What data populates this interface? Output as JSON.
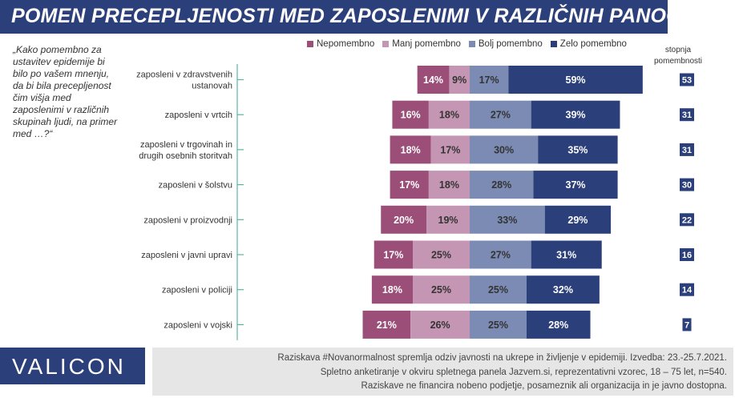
{
  "title": "POMEN PRECEPLJENOSTI MED ZAPOSLENIMI V RAZLIČNIH PANOGAH",
  "question": "„Kako pomembno za ustavitev epidemije bi bilo po vašem mnenju, da bi bila precepljenost čim višja med zaposlenimi v različnih skupinah ljudi, na primer med …?“",
  "index_header": [
    "stopnja",
    "pomembnosti"
  ],
  "colors": {
    "nepomembno": "#9b4f78",
    "manj": "#c596b3",
    "bolj": "#7c8bb4",
    "zelo": "#2b3f7a",
    "bracket": "#5ab3a2"
  },
  "chart_data": {
    "type": "bar",
    "stacked": "diverging",
    "legend": [
      "Nepomembno",
      "Manj pomembno",
      "Bolj pomembno",
      "Zelo pomembno"
    ],
    "legend_position": "top",
    "categories": [
      [
        "zaposleni v zdravstvenih",
        "ustanovah"
      ],
      [
        "zaposleni v vrtcih"
      ],
      [
        "zaposleni v trgovinah in",
        "drugih osebnih storitvah"
      ],
      [
        "zaposleni v šolstvu"
      ],
      [
        "zaposleni v proizvodnji"
      ],
      [
        "zaposleni v javni upravi"
      ],
      [
        "zaposleni v policiji"
      ],
      [
        "zaposleni v vojski"
      ]
    ],
    "series": [
      {
        "name": "Nepomembno",
        "values": [
          14,
          16,
          18,
          17,
          20,
          17,
          18,
          21
        ]
      },
      {
        "name": "Manj pomembno",
        "values": [
          9,
          18,
          17,
          18,
          19,
          25,
          25,
          26
        ]
      },
      {
        "name": "Bolj pomembno",
        "values": [
          17,
          27,
          30,
          28,
          33,
          27,
          25,
          25
        ]
      },
      {
        "name": "Zelo pomembno",
        "values": [
          59,
          39,
          35,
          37,
          29,
          31,
          32,
          28
        ]
      }
    ],
    "value_suffix": "%",
    "index": [
      53,
      31,
      31,
      30,
      22,
      16,
      14,
      7
    ]
  },
  "logo": "VALICON",
  "footer": [
    "Raziskava #Novanormalnost spremlja odziv javnosti na ukrepe in življenje v epidemiji. Izvedba: 23.-25.7.2021.",
    "Spletno anketiranje v okviru spletnega panela Jazvem.si, reprezentativni vzorec, 18 – 75 let, n=540.",
    "Raziskave ne financira nobeno podjetje, posameznik ali organizacija in je javno dostopna."
  ]
}
